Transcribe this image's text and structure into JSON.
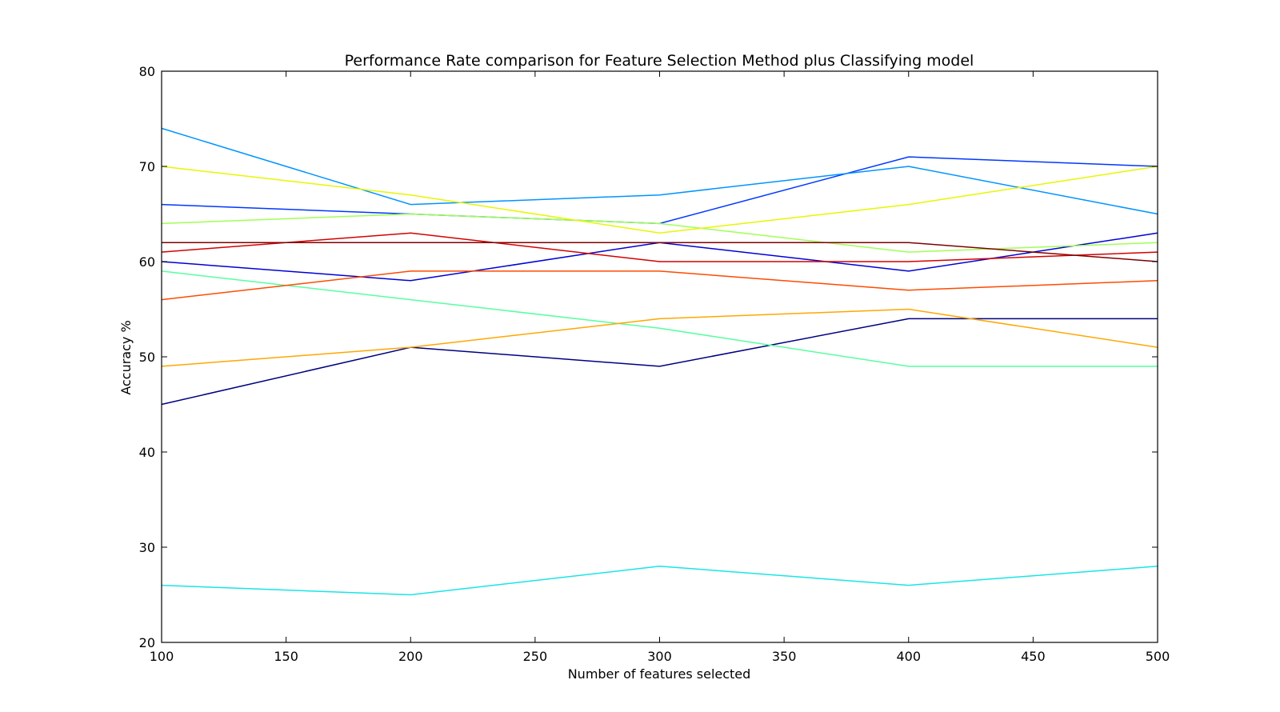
{
  "chart_data": {
    "type": "line",
    "title": "Performance Rate comparison for Feature Selection Method plus Classifying model",
    "xlabel": "Number of features selected",
    "ylabel": "Accuracy %",
    "xlim": [
      100,
      500
    ],
    "ylim": [
      20,
      80
    ],
    "x_ticks": [
      100,
      150,
      200,
      250,
      300,
      350,
      400,
      450,
      500
    ],
    "y_ticks": [
      20,
      30,
      40,
      50,
      60,
      70,
      80
    ],
    "grid": false,
    "x": [
      100,
      200,
      300,
      400,
      500
    ],
    "series": [
      {
        "color": "#00007f",
        "values": [
          45,
          51,
          49,
          54,
          54
        ]
      },
      {
        "color": "#0000d4",
        "values": [
          60,
          58,
          62,
          59,
          63
        ]
      },
      {
        "color": "#0038ff",
        "values": [
          66,
          65,
          64,
          71,
          70
        ]
      },
      {
        "color": "#0094ff",
        "values": [
          74,
          66,
          67,
          70,
          65
        ]
      },
      {
        "color": "#1ae4e6",
        "values": [
          26,
          25,
          28,
          26,
          28
        ]
      },
      {
        "color": "#56ffa0",
        "values": [
          59,
          56,
          53,
          49,
          49
        ]
      },
      {
        "color": "#a0ff56",
        "values": [
          64,
          65,
          64,
          61,
          62
        ]
      },
      {
        "color": "#e6f700",
        "values": [
          70,
          67,
          63,
          66,
          70
        ]
      },
      {
        "color": "#ffa700",
        "values": [
          49,
          51,
          54,
          55,
          51
        ]
      },
      {
        "color": "#ff4a00",
        "values": [
          56,
          59,
          59,
          57,
          58
        ]
      },
      {
        "color": "#d40000",
        "values": [
          61,
          63,
          60,
          60,
          61
        ]
      },
      {
        "color": "#7f0000",
        "values": [
          62,
          62,
          62,
          62,
          60
        ]
      }
    ]
  }
}
